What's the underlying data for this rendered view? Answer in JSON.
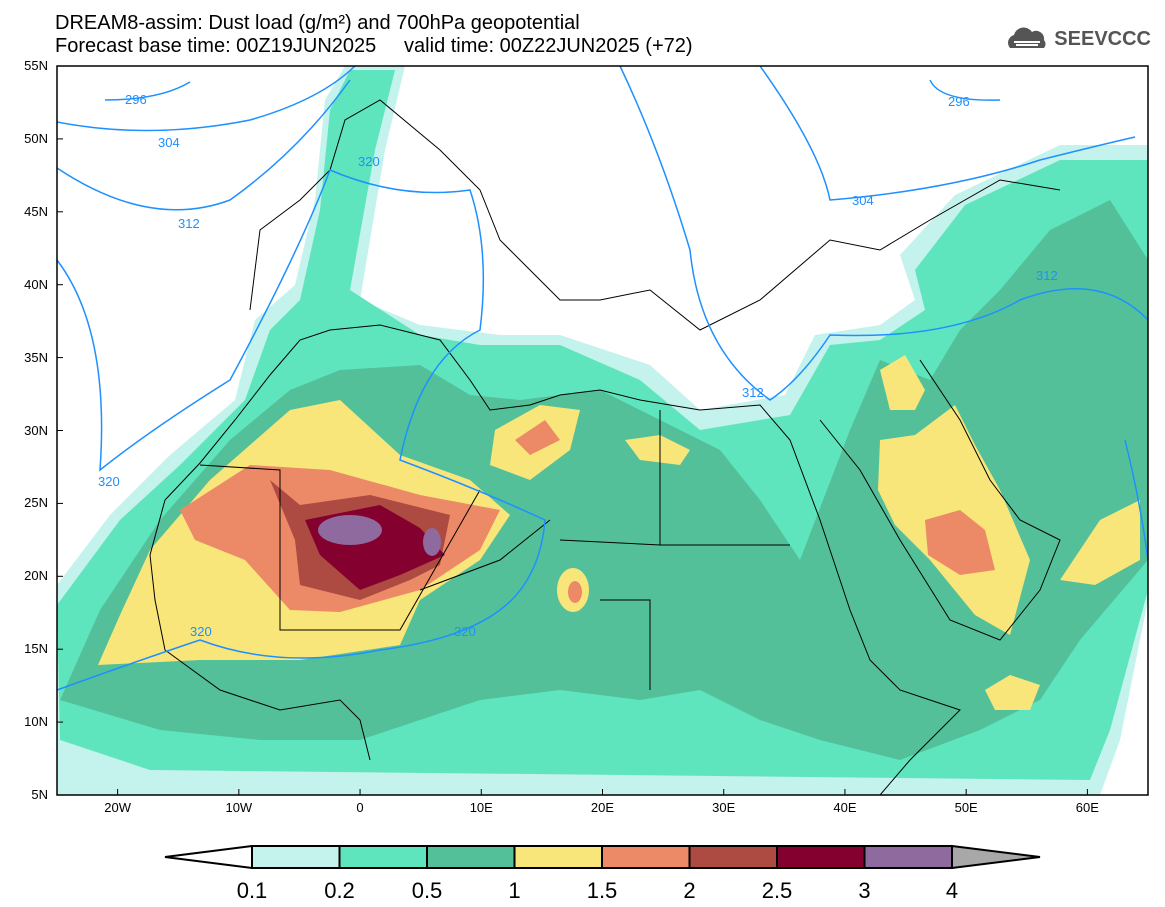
{
  "header": {
    "title": "DREAM8-assim: Dust load (g/m²) and 700hPa geopotential",
    "subtitle": "Forecast base time: 00Z19JUN2025     valid time: 00Z22JUN2025 (+72)",
    "logo": "SEEVCCC"
  },
  "axes": {
    "lat_labels": [
      "55N",
      "50N",
      "45N",
      "40N",
      "35N",
      "30N",
      "25N",
      "20N",
      "15N",
      "10N",
      "5N"
    ],
    "lon_labels": [
      "20W",
      "10W",
      "0",
      "10E",
      "20E",
      "30E",
      "40E",
      "50E",
      "60E"
    ]
  },
  "contour_labels": [
    "296",
    "304",
    "312",
    "320",
    "320",
    "320",
    "320",
    "296",
    "304",
    "312",
    "312"
  ],
  "colorbar": {
    "ticks": [
      "0.1",
      "0.2",
      "0.5",
      "1",
      "1.5",
      "2",
      "2.5",
      "3",
      "4"
    ],
    "colors": [
      "#c4f2ec",
      "#5fe5bd",
      "#53c09a",
      "#f8e67a",
      "#ec8a68",
      "#ad4a41",
      "#84002e",
      "#8e6a9e"
    ],
    "over_color": "#a8a8a8",
    "contour_color": "#1e90ff"
  }
}
